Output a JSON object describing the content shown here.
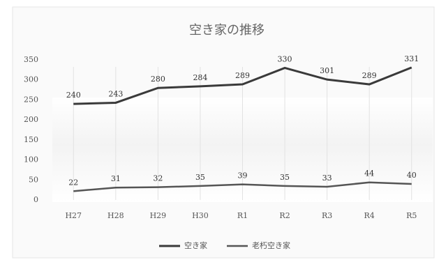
{
  "chart_data": {
    "type": "line",
    "title": "空き家の推移",
    "categories": [
      "H27",
      "H28",
      "H29",
      "H30",
      "R1",
      "R2",
      "R3",
      "R4",
      "R5"
    ],
    "series": [
      {
        "name": "空き家",
        "color": "#3a3a3a",
        "values": [
          240,
          243,
          280,
          284,
          289,
          330,
          301,
          289,
          331
        ]
      },
      {
        "name": "老朽空き家",
        "color": "#555555",
        "values": [
          22,
          31,
          32,
          35,
          39,
          35,
          33,
          44,
          40
        ]
      }
    ],
    "ylim": [
      0,
      350
    ],
    "yticks": [
      0,
      50,
      100,
      150,
      200,
      250,
      300,
      350
    ],
    "legend": "bottom"
  }
}
